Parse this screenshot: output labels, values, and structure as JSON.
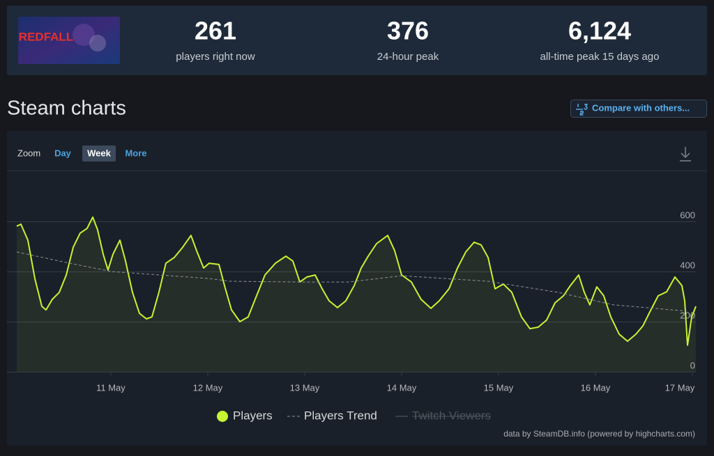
{
  "header": {
    "game_logo": "REDFALL",
    "stats": [
      {
        "value": "261",
        "label": "players right now"
      },
      {
        "value": "376",
        "label": "24-hour peak"
      },
      {
        "value": "6,124",
        "label": "all-time peak 15 days ago"
      }
    ]
  },
  "section_title": "Steam charts",
  "compare_button": "Compare with others...",
  "zoom": {
    "label": "Zoom",
    "options": [
      "Day",
      "Week",
      "More"
    ],
    "active": 1
  },
  "chart_data": {
    "type": "line",
    "xlim": [
      10.029,
      17.036
    ],
    "xticks": [
      {
        "value": 11,
        "label": "11 May"
      },
      {
        "value": 12,
        "label": "12 May"
      },
      {
        "value": 13,
        "label": "13 May"
      },
      {
        "value": 14,
        "label": "14 May"
      },
      {
        "value": 15,
        "label": "15 May"
      },
      {
        "value": 16,
        "label": "16 May"
      },
      {
        "value": 17,
        "label": "17 May"
      }
    ],
    "ylim": [
      0,
      800
    ],
    "yticks": [
      0,
      200,
      400,
      600
    ],
    "grid": true,
    "legend": "bottom",
    "series": [
      {
        "name": "Players",
        "color": "#c6f432",
        "area": true,
        "x": [
          10.029,
          10.072,
          10.144,
          10.216,
          10.288,
          10.331,
          10.396,
          10.468,
          10.54,
          10.612,
          10.683,
          10.755,
          10.813,
          10.863,
          10.921,
          10.971,
          11.022,
          11.094,
          11.151,
          11.223,
          11.295,
          11.367,
          11.424,
          11.496,
          11.568,
          11.655,
          11.741,
          11.827,
          11.885,
          11.957,
          12.014,
          12.115,
          12.173,
          12.245,
          12.331,
          12.417,
          12.489,
          12.59,
          12.698,
          12.806,
          12.878,
          12.95,
          13.022,
          13.108,
          13.18,
          13.252,
          13.338,
          13.424,
          13.511,
          13.583,
          13.655,
          13.741,
          13.856,
          13.928,
          14.0,
          14.101,
          14.201,
          14.302,
          14.388,
          14.489,
          14.576,
          14.662,
          14.748,
          14.82,
          14.892,
          14.964,
          15.05,
          15.137,
          15.237,
          15.324,
          15.41,
          15.496,
          15.583,
          15.669,
          15.741,
          15.827,
          15.885,
          15.942,
          16.014,
          16.086,
          16.158,
          16.245,
          16.331,
          16.417,
          16.489,
          16.561,
          16.647,
          16.734,
          16.82,
          16.892,
          16.921,
          16.95,
          16.993,
          17.036
        ],
        "values": [
          581,
          589,
          525,
          372,
          261,
          247,
          289,
          317,
          386,
          497,
          553,
          572,
          617,
          567,
          469,
          406,
          469,
          525,
          442,
          317,
          233,
          211,
          219,
          317,
          433,
          456,
          497,
          544,
          483,
          414,
          433,
          428,
          344,
          247,
          200,
          219,
          289,
          386,
          433,
          461,
          442,
          358,
          378,
          386,
          331,
          283,
          256,
          283,
          344,
          414,
          461,
          511,
          544,
          483,
          386,
          358,
          289,
          253,
          283,
          331,
          414,
          478,
          517,
          506,
          456,
          331,
          350,
          317,
          219,
          172,
          178,
          206,
          275,
          303,
          344,
          386,
          317,
          267,
          339,
          303,
          219,
          150,
          122,
          150,
          183,
          239,
          303,
          319,
          378,
          344,
          283,
          106,
          219,
          261
        ]
      },
      {
        "name": "Players Trend",
        "color": "#8d9298",
        "dashed": true,
        "x": [
          10.029,
          10.576,
          11.007,
          12.014,
          12.23,
          12.95,
          13.453,
          14.0,
          14.892,
          15.612,
          16.187,
          16.942
        ],
        "values": [
          478,
          433,
          400,
          372,
          361,
          358,
          358,
          383,
          361,
          317,
          267,
          242
        ]
      },
      {
        "name": "Twitch Viewers",
        "color": "#5a6068",
        "visible": false
      }
    ]
  },
  "credit": "data by SteamDB.info (powered by highcharts.com)"
}
